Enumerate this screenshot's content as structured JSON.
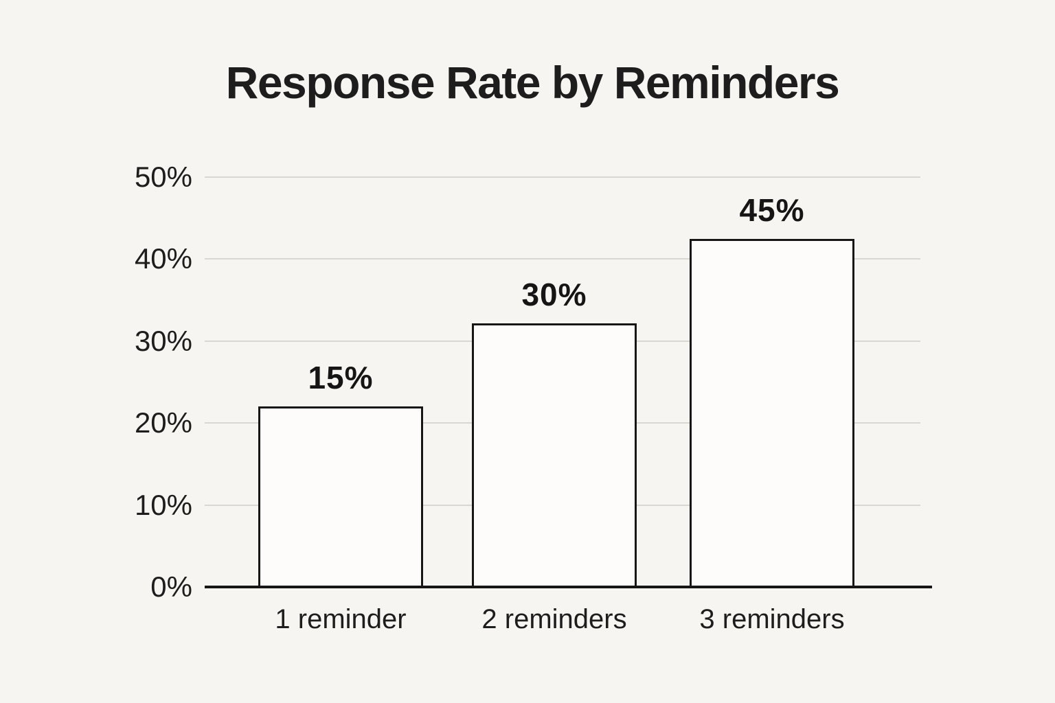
{
  "chart_data": {
    "type": "bar",
    "title": "Response Rate by Reminders",
    "categories": [
      "1 reminder",
      "2 reminders",
      "3 reminders"
    ],
    "values": [
      15,
      30,
      45
    ],
    "value_labels": [
      "15%",
      "30%",
      "45%"
    ],
    "drawn_bar_top_pct": [
      22,
      32.2,
      42.5
    ],
    "xlabel": "",
    "ylabel": "",
    "y_ticks": [
      0,
      10,
      20,
      30,
      40,
      50
    ],
    "y_tick_labels": [
      "0%",
      "10%",
      "20%",
      "30%",
      "40%",
      "50%"
    ],
    "ylim": [
      0,
      50
    ],
    "grid": "horizontal",
    "legend": "none",
    "colors": {
      "background": "#f7f5f1",
      "bar_fill": "#fdfcfa",
      "bar_border": "#161616",
      "gridline": "#dad7d2",
      "axis_line": "#161616",
      "text": "#1d1d1d"
    }
  }
}
